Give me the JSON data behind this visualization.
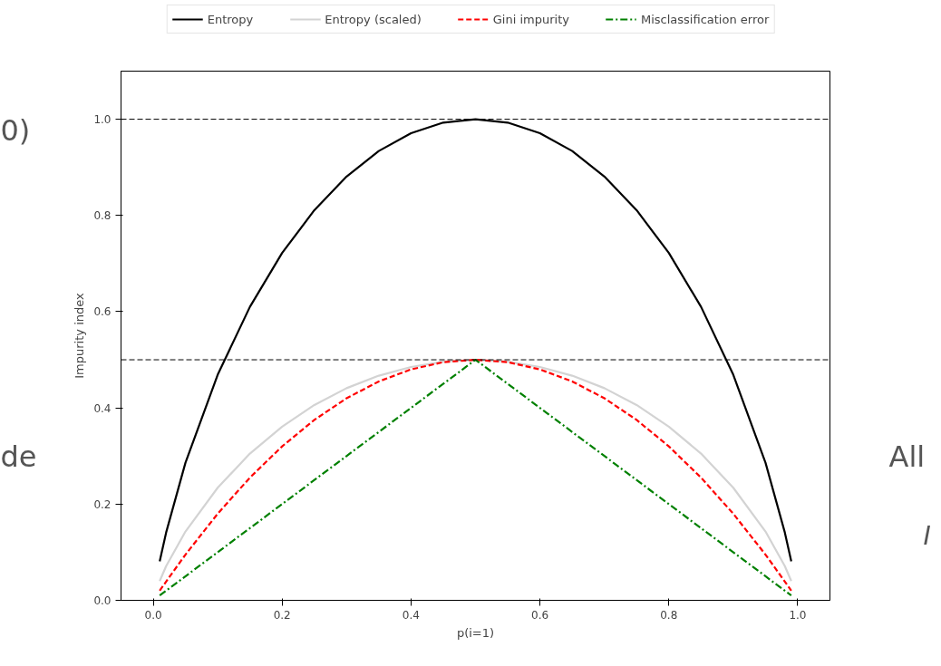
{
  "chart_data": {
    "type": "line",
    "xlabel": "p(i=1)",
    "ylabel": "Impurity index",
    "x": [
      0.01,
      0.02,
      0.05,
      0.1,
      0.15,
      0.2,
      0.25,
      0.3,
      0.35,
      0.4,
      0.45,
      0.5,
      0.55,
      0.6,
      0.65,
      0.7,
      0.75,
      0.8,
      0.85,
      0.9,
      0.95,
      0.98,
      0.99
    ],
    "series": [
      {
        "name": "Entropy",
        "color": "#000000",
        "line_style": "solid",
        "values": [
          0.081,
          0.141,
          0.286,
          0.469,
          0.61,
          0.722,
          0.811,
          0.881,
          0.934,
          0.971,
          0.993,
          1.0,
          0.993,
          0.971,
          0.934,
          0.881,
          0.811,
          0.722,
          0.61,
          0.469,
          0.286,
          0.141,
          0.081
        ]
      },
      {
        "name": "Entropy (scaled)",
        "color": "#d3d3d3",
        "line_style": "solid",
        "values": [
          0.04,
          0.071,
          0.143,
          0.234,
          0.305,
          0.361,
          0.406,
          0.441,
          0.467,
          0.485,
          0.496,
          0.5,
          0.496,
          0.485,
          0.467,
          0.441,
          0.406,
          0.361,
          0.305,
          0.234,
          0.143,
          0.071,
          0.04
        ]
      },
      {
        "name": "Gini impurity",
        "color": "#ff0000",
        "line_style": "dashed",
        "values": [
          0.02,
          0.039,
          0.095,
          0.18,
          0.255,
          0.32,
          0.375,
          0.42,
          0.455,
          0.48,
          0.495,
          0.5,
          0.495,
          0.48,
          0.455,
          0.42,
          0.375,
          0.32,
          0.255,
          0.18,
          0.095,
          0.039,
          0.02
        ]
      },
      {
        "name": "Misclassification error",
        "color": "#008000",
        "line_style": "dashdot",
        "x": [
          0.01,
          0.5,
          0.99
        ],
        "values": [
          0.01,
          0.5,
          0.01
        ]
      }
    ],
    "xlim": [
      -0.05,
      1.05
    ],
    "ylim": [
      0,
      1.1
    ],
    "xticks": [
      {
        "value": 0,
        "label": "0.0"
      },
      0.2,
      0.4,
      0.6,
      0.8,
      {
        "value": 1,
        "label": "1.0"
      }
    ],
    "yticks": [
      {
        "value": 0,
        "label": "0.0"
      },
      0.2,
      0.4,
      0.6,
      0.8,
      {
        "value": 1,
        "label": "1.0"
      }
    ],
    "ref_lines": [
      {
        "axis": "y",
        "value": 0.5,
        "color": "#000000",
        "line_style": "dashed"
      },
      {
        "axis": "y",
        "value": 1.0,
        "color": "#000000",
        "line_style": "dashed"
      }
    ],
    "grid": false,
    "legend": "top",
    "annotations": [
      "0)",
      "de",
      "All",
      "I"
    ]
  }
}
